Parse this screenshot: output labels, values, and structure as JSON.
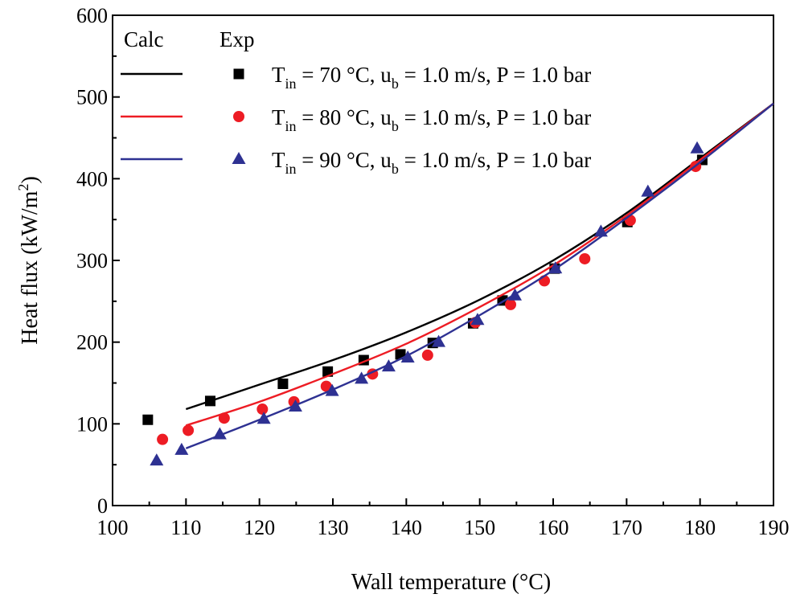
{
  "chart_data": {
    "type": "line+scatter",
    "xlabel": "Wall temperature (°C)",
    "ylabel_parts": [
      "Heat flux (kW/m",
      "2",
      ")"
    ],
    "xlim": [
      100,
      190
    ],
    "ylim": [
      0,
      600
    ],
    "xticks": [
      100,
      110,
      120,
      130,
      140,
      150,
      160,
      170,
      180,
      190
    ],
    "yticks": [
      0,
      100,
      200,
      300,
      400,
      500,
      600
    ],
    "grid": false,
    "legend": {
      "placement": "top-left",
      "calc_header": "Calc",
      "exp_header": "Exp",
      "entries": [
        {
          "T": "T",
          "sub_in": "in",
          "mid": " = 70 °C, u",
          "sub_b": "b",
          "end": " = 1.0 m/s, P = 1.0 bar"
        },
        {
          "T": "T",
          "sub_in": "in",
          "mid": " = 80 °C, u",
          "sub_b": "b",
          "end": " = 1.0 m/s, P = 1.0 bar"
        },
        {
          "T": "T",
          "sub_in": "in",
          "mid": " = 90 °C, u",
          "sub_b": "b",
          "end": " = 1.0 m/s, P = 1.0 bar"
        }
      ]
    },
    "series": [
      {
        "color": "#000000",
        "marker": "square",
        "calc": {
          "x": [
            110,
            120,
            130,
            140,
            150,
            160,
            170,
            180,
            190
          ],
          "y": [
            118,
            148,
            178,
            212,
            252,
            300,
            358,
            425,
            492
          ]
        },
        "exp": {
          "x": [
            104.8,
            113.3,
            123.2,
            129.3,
            134.2,
            139.2,
            143.6,
            149.1,
            153.1,
            160.2,
            170.1,
            180.3
          ],
          "y": [
            105,
            128,
            149,
            164,
            178,
            185,
            199,
            223,
            251,
            290,
            347,
            423
          ]
        }
      },
      {
        "color": "#ed1c24",
        "marker": "circle",
        "calc": {
          "x": [
            110,
            120,
            130,
            140,
            150,
            160,
            170,
            180,
            190
          ],
          "y": [
            98,
            127,
            161,
            198,
            243,
            294,
            355,
            423,
            492
          ]
        },
        "exp": {
          "x": [
            106.8,
            110.3,
            115.2,
            120.4,
            124.7,
            129.1,
            135.4,
            142.9,
            149.4,
            154.2,
            158.8,
            164.3,
            170.5,
            179.4
          ],
          "y": [
            81,
            92,
            107,
            118,
            127,
            146,
            161,
            184,
            224,
            246,
            275,
            302,
            349,
            415
          ]
        }
      },
      {
        "color": "#2e3192",
        "marker": "triangle",
        "calc": {
          "x": [
            110,
            120,
            130,
            140,
            150,
            160,
            170,
            180,
            190
          ],
          "y": [
            70,
            105,
            142,
            183,
            233,
            288,
            352,
            420,
            492
          ]
        },
        "exp": {
          "x": [
            106,
            109.4,
            114.6,
            120.6,
            124.9,
            129.9,
            133.9,
            137.6,
            140.2,
            144.4,
            149.7,
            154.8,
            160.3,
            166.5,
            172.9,
            179.6
          ],
          "y": [
            55,
            68,
            87,
            106,
            121,
            140,
            155,
            170,
            181,
            200,
            227,
            257,
            290,
            335,
            384,
            437
          ]
        }
      }
    ]
  }
}
